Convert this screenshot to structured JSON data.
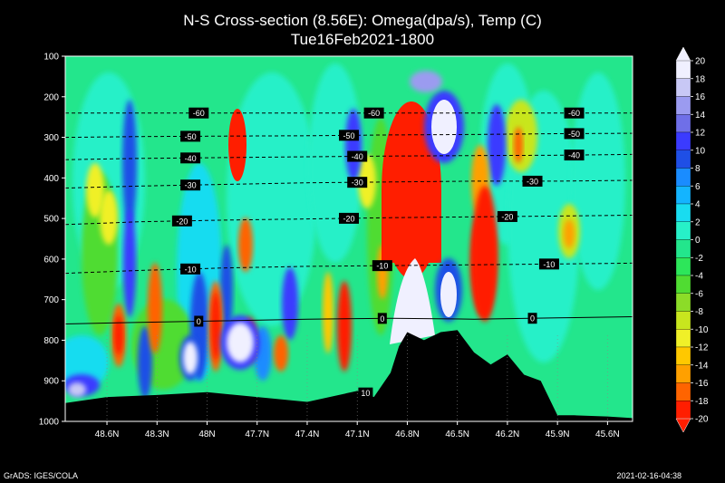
{
  "chart_data": {
    "type": "heatmap",
    "title": "N-S Cross-section (8.56E): Omega(dpa/s), Temp (C)",
    "subtitle": "Tue16Feb2021-1800",
    "y_ticks": [
      100,
      200,
      300,
      400,
      500,
      600,
      700,
      800,
      900,
      1000
    ],
    "ylim": [
      100,
      1000
    ],
    "x_ticks": [
      "48.6N",
      "48.3N",
      "48N",
      "47.7N",
      "47.4N",
      "47.1N",
      "46.8N",
      "46.5N",
      "46.2N",
      "45.9N",
      "45.6N"
    ],
    "xlim_lat": [
      48.85,
      45.45
    ],
    "colorbar": {
      "labels": [
        "20",
        "18",
        "16",
        "14",
        "12",
        "10",
        "8",
        "6",
        "4",
        "2",
        "0",
        "-2",
        "-4",
        "-6",
        "-8",
        "-10",
        "-12",
        "-14",
        "-16",
        "-18",
        "-20"
      ],
      "colors": [
        "#f0f0ff",
        "#c8c8f5",
        "#9b9bf0",
        "#6f6fe8",
        "#3b3bff",
        "#1f4fe6",
        "#1a8cff",
        "#14b4ff",
        "#19dcf0",
        "#27f0c8",
        "#23e68c",
        "#2de65a",
        "#50dc32",
        "#8cdc28",
        "#c8e61e",
        "#f0f028",
        "#ffc800",
        "#ffa000",
        "#ff6400",
        "#ff1e00"
      ]
    },
    "temperature_isotherms": [
      {
        "value": -60,
        "labels": [
          {
            "lat": 48.05,
            "label": "-60"
          },
          {
            "lat": 47.0,
            "label": "-60"
          },
          {
            "lat": 45.8,
            "label": "-60"
          }
        ],
        "p": [
          240,
          240,
          240,
          240,
          240,
          240,
          240,
          240
        ]
      },
      {
        "value": -50,
        "labels": [
          {
            "lat": 48.1,
            "label": "-50"
          },
          {
            "lat": 47.15,
            "label": "-50"
          },
          {
            "lat": 45.8,
            "label": "-50"
          }
        ],
        "p": [
          300,
          298,
          297,
          296,
          294,
          293,
          291,
          290
        ]
      },
      {
        "value": -40,
        "labels": [
          {
            "lat": 48.1,
            "label": "-40"
          },
          {
            "lat": 47.1,
            "label": "-40"
          },
          {
            "lat": 45.8,
            "label": "-40"
          }
        ],
        "p": [
          355,
          352,
          350,
          348,
          346,
          345,
          344,
          342
        ]
      },
      {
        "value": -30,
        "labels": [
          {
            "lat": 48.1,
            "label": "-30"
          },
          {
            "lat": 47.1,
            "label": "-30"
          },
          {
            "lat": 46.05,
            "label": "-30"
          }
        ],
        "p": [
          425,
          420,
          416,
          412,
          410,
          408,
          408,
          406
        ]
      },
      {
        "value": -20,
        "labels": [
          {
            "lat": 48.15,
            "label": "-20"
          },
          {
            "lat": 47.15,
            "label": "-20"
          },
          {
            "lat": 46.2,
            "label": "-20"
          }
        ],
        "p": [
          515,
          508,
          504,
          501,
          498,
          496,
          494,
          492
        ]
      },
      {
        "value": -10,
        "labels": [
          {
            "lat": 48.1,
            "label": "-10"
          },
          {
            "lat": 46.95,
            "label": "-10"
          },
          {
            "lat": 45.95,
            "label": "-10"
          }
        ],
        "p": [
          635,
          628,
          622,
          618,
          616,
          614,
          612,
          610
        ]
      },
      {
        "value": 0,
        "labels": [
          {
            "lat": 48.05,
            "label": "0"
          },
          {
            "lat": 46.95,
            "label": "0"
          },
          {
            "lat": 46.05,
            "label": "0"
          }
        ],
        "p": [
          760,
          756,
          752,
          748,
          746,
          748,
          745,
          742
        ]
      },
      {
        "value": 10,
        "labels": [
          {
            "lat": 47.05,
            "label": "10"
          }
        ],
        "p": [
          930
        ]
      }
    ],
    "temperature_samples_lat": [
      48.85,
      48.4,
      47.9,
      47.4,
      46.9,
      46.4,
      45.9,
      45.45
    ],
    "terrain_surface_hpa": {
      "lat": [
        48.85,
        48.6,
        48.3,
        48.0,
        47.7,
        47.4,
        47.1,
        47.0,
        46.9,
        46.85,
        46.8,
        46.7,
        46.6,
        46.5,
        46.4,
        46.3,
        46.2,
        46.1,
        46.0,
        45.9,
        45.8,
        45.6,
        45.45
      ],
      "p": [
        955,
        940,
        935,
        928,
        940,
        952,
        925,
        940,
        880,
        815,
        780,
        800,
        780,
        775,
        830,
        860,
        835,
        885,
        900,
        985,
        985,
        988,
        992
      ]
    }
  },
  "footer": {
    "left": "GrADS: IGES/COLA",
    "right": "2021-02-16-04:38"
  }
}
